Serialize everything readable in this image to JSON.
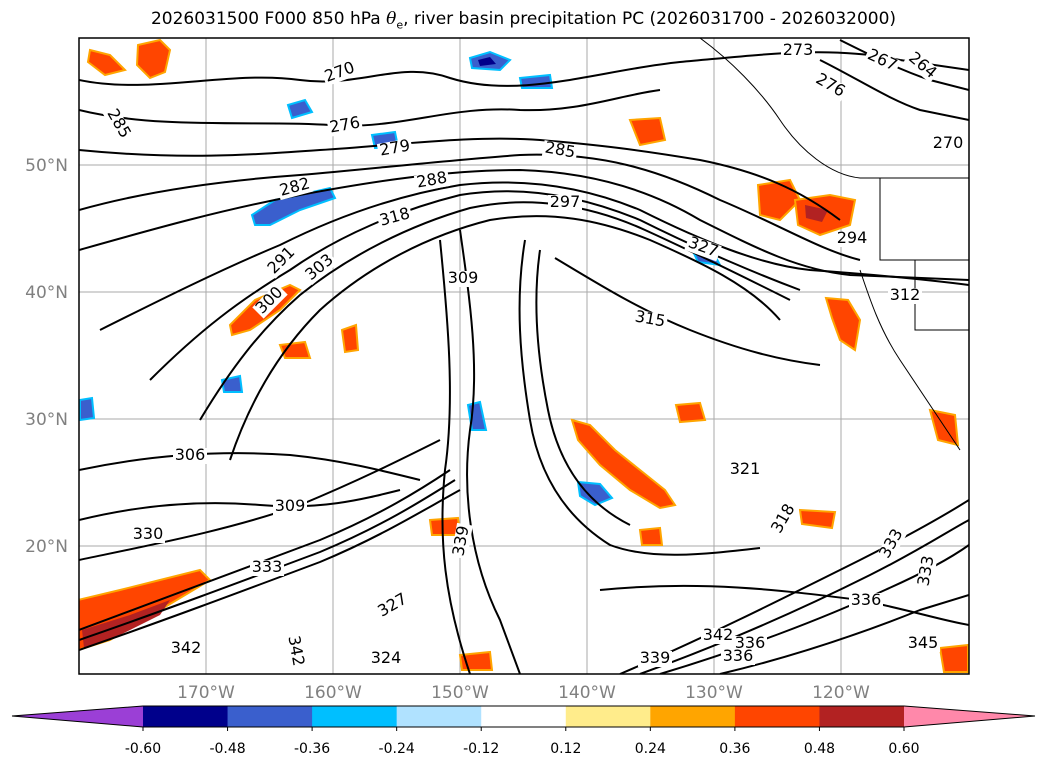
{
  "title": {
    "prefix": "2026031500 F000 850 hPa ",
    "theta_symbol": "θ",
    "theta_subscript": "e",
    "suffix": ", river basin precipitation PC (2026031700 - 2026032000)"
  },
  "map": {
    "projection": "lat-lon",
    "lon_range": [
      -180,
      -110
    ],
    "lat_range": [
      10,
      60
    ],
    "ocean_color": "#ffffff",
    "grid_color": "#aaaaaa",
    "lat_labels": [
      "50°N",
      "40°N",
      "30°N",
      "20°N"
    ],
    "lon_labels": [
      "170°W",
      "160°W",
      "150°W",
      "140°W",
      "130°W",
      "120°W"
    ],
    "contour_labels": [
      "285",
      "273",
      "270",
      "276",
      "267",
      "264",
      "270",
      "276",
      "279",
      "282",
      "288",
      "285",
      "291",
      "294",
      "300",
      "303",
      "318",
      "297",
      "327",
      "309",
      "315",
      "312",
      "306",
      "321",
      "309",
      "318",
      "330",
      "333",
      "339",
      "327",
      "333",
      "336",
      "345",
      "342",
      "342",
      "324",
      "339",
      "336",
      "342",
      "336",
      "333"
    ]
  },
  "colorbar": {
    "ticks": [
      "-0.60",
      "-0.48",
      "-0.36",
      "-0.24",
      "-0.12",
      "0.12",
      "0.24",
      "0.36",
      "0.48",
      "0.60"
    ],
    "under_color": "#9b3fd6",
    "over_color": "#ff88aa",
    "colors": [
      "#00008b",
      "#3a5fcd",
      "#00bfff",
      "#b0e2ff",
      "#ffffff",
      "#ffec8b",
      "#ffa500",
      "#ff4500",
      "#b22222"
    ]
  }
}
